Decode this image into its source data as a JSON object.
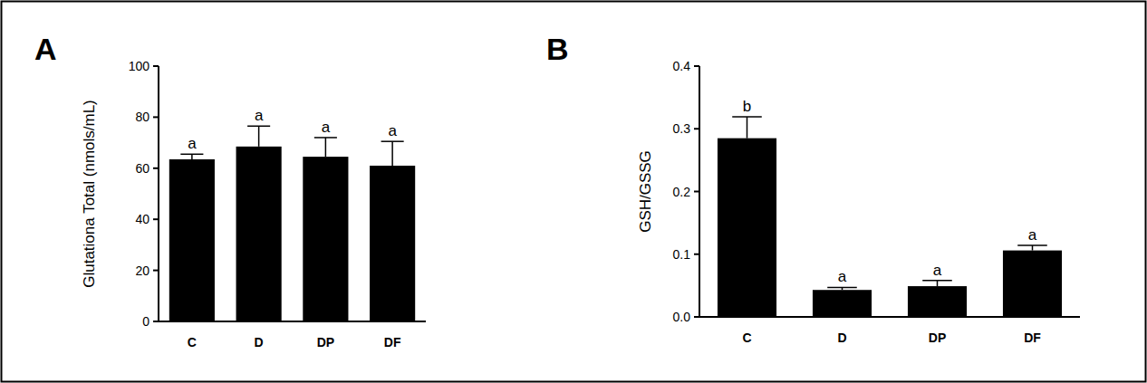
{
  "chart_data": [
    {
      "type": "bar",
      "title": "A",
      "y_label": "Glutationa Total (nmols/mL)",
      "categories": [
        "C",
        "D",
        "DP",
        "DF"
      ],
      "values": [
        63.5,
        68.5,
        64.5,
        61
      ],
      "errors": [
        2,
        8,
        7.5,
        9.5
      ],
      "annotations": [
        "a",
        "a",
        "a",
        "a"
      ],
      "color": "#000000",
      "ylim": [
        0,
        100
      ],
      "yticks": [
        0,
        20,
        40,
        60,
        80,
        100
      ],
      "grid": false
    },
    {
      "type": "bar",
      "title": "B",
      "y_label": "GSH/GSSG",
      "categories": [
        "C",
        "D",
        "DP",
        "DF"
      ],
      "values": [
        0.285,
        0.043,
        0.049,
        0.106
      ],
      "errors": [
        0.034,
        0.004,
        0.009,
        0.008
      ],
      "annotations": [
        "b",
        "a",
        "a",
        "a"
      ],
      "color": "#000000",
      "ylim": [
        0,
        0.4
      ],
      "yticks": [
        {
          "value": 0,
          "label": "0.0"
        },
        0.1,
        0.2,
        0.3,
        0.4
      ],
      "grid": false
    }
  ]
}
